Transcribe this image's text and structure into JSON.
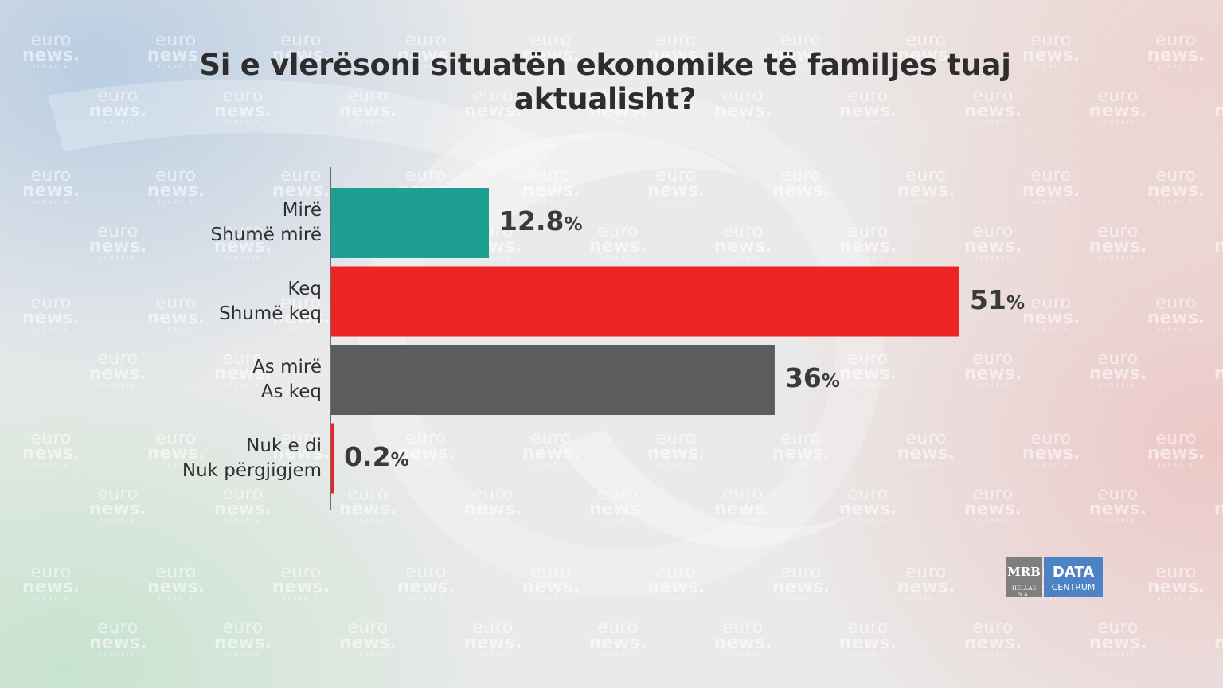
{
  "title": "Si e vlerësoni situatën ekonomike të familjes tuaj aktualisht?",
  "watermark": {
    "line1": "euro",
    "line2": "news.",
    "line3": "ALBANIA"
  },
  "logo": {
    "mrb": "MRB",
    "mrb_sub": "HELLAS S.A.",
    "data": "DATA",
    "data_sub": "CENTRUM"
  },
  "chart_data": {
    "type": "bar",
    "orientation": "horizontal",
    "categories": [
      [
        "Mirë",
        "Shumë mirë"
      ],
      [
        "Keq",
        "Shumë keq"
      ],
      [
        "As mirë",
        "As keq"
      ],
      [
        "Nuk e di",
        "Nuk përgjigjem"
      ]
    ],
    "values": [
      12.8,
      51,
      36,
      0.2
    ],
    "value_labels": [
      "12.8",
      "51",
      "36",
      "0.2"
    ],
    "unit": "%",
    "colors": [
      "#1f9e92",
      "#ed2424",
      "#5c5c5c",
      "#ed2424"
    ],
    "xlim": [
      0,
      51
    ],
    "grid": false,
    "legend": "none"
  }
}
